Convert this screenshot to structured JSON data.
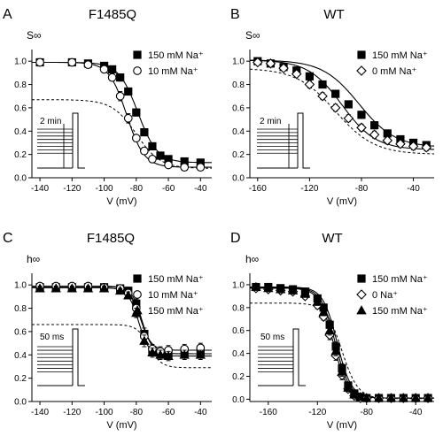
{
  "chart_data": [
    {
      "type": "scatter",
      "panel_letter": "A",
      "title": "F1485Q",
      "ylabel": "S∞",
      "xlabel": "V (mV)",
      "xlim": [
        -145,
        -33
      ],
      "ylim": [
        0.0,
        1.1
      ],
      "xticks": [
        -140,
        -120,
        -100,
        -80,
        -60,
        -40
      ],
      "yticks": [
        0.0,
        0.2,
        0.4,
        0.6,
        0.8,
        1.0
      ],
      "legend_position": "right",
      "inset_label": "2 min",
      "series": [
        {
          "name": "150 mM Na⁺",
          "marker": "filled-square",
          "x": [
            -140,
            -120,
            -110,
            -100,
            -95,
            -90,
            -85,
            -80,
            -75,
            -70,
            -65,
            -60,
            -50,
            -40
          ],
          "y": [
            0.99,
            0.99,
            0.98,
            0.96,
            0.93,
            0.86,
            0.74,
            0.56,
            0.39,
            0.27,
            0.19,
            0.16,
            0.14,
            0.13
          ],
          "err": [
            0.01,
            0.01,
            0.01,
            0.02,
            0.02,
            0.03,
            0.03,
            0.03,
            0.03,
            0.03,
            0.03,
            0.03,
            0.02,
            0.02
          ]
        },
        {
          "name": "10 mM Na⁺",
          "marker": "open-circle",
          "x": [
            -140,
            -120,
            -110,
            -100,
            -95,
            -90,
            -85,
            -80,
            -75,
            -70,
            -60,
            -50,
            -40
          ],
          "y": [
            0.99,
            0.99,
            0.97,
            0.93,
            0.86,
            0.7,
            0.51,
            0.34,
            0.23,
            0.16,
            0.11,
            0.09,
            0.09
          ],
          "err": [
            0.01,
            0.01,
            0.01,
            0.02,
            0.03,
            0.04,
            0.04,
            0.03,
            0.03,
            0.02,
            0.02,
            0.02,
            0.02
          ]
        }
      ],
      "fit_curves": [
        {
          "style": "solid",
          "v_half": -79,
          "k": 6.0,
          "min": 0.13,
          "max": 0.99
        },
        {
          "style": "solid",
          "v_half": -86,
          "k": 5.5,
          "min": 0.09,
          "max": 0.99
        },
        {
          "style": "dashed",
          "v_half": -80,
          "k": 7.5,
          "min": 0.08,
          "max": 0.67
        }
      ]
    },
    {
      "type": "scatter",
      "panel_letter": "B",
      "title": "WT",
      "ylabel": "S∞",
      "xlabel": "V (mV)",
      "xlim": [
        -166,
        -24
      ],
      "ylim": [
        0.0,
        1.1
      ],
      "xticks": [
        -160,
        -120,
        -80,
        -40
      ],
      "yticks": [
        0.0,
        0.2,
        0.4,
        0.6,
        0.8,
        1.0
      ],
      "legend_position": "right",
      "inset_label": "2 min",
      "series": [
        {
          "name": "150 mM Na⁺",
          "marker": "filled-square",
          "x": [
            -160,
            -150,
            -140,
            -130,
            -120,
            -110,
            -100,
            -90,
            -80,
            -70,
            -60,
            -50,
            -40,
            -30
          ],
          "y": [
            1.0,
            0.98,
            0.95,
            0.92,
            0.87,
            0.8,
            0.72,
            0.63,
            0.54,
            0.45,
            0.38,
            0.33,
            0.3,
            0.28
          ],
          "err": [
            0.01,
            0.02,
            0.02,
            0.02,
            0.02,
            0.03,
            0.03,
            0.03,
            0.03,
            0.03,
            0.03,
            0.03,
            0.03,
            0.03
          ]
        },
        {
          "name": "0 mM Na⁺",
          "marker": "open-diamond",
          "x": [
            -160,
            -150,
            -140,
            -130,
            -120,
            -110,
            -100,
            -90,
            -80,
            -70,
            -60,
            -50,
            -40,
            -30
          ],
          "y": [
            0.99,
            0.98,
            0.94,
            0.89,
            0.8,
            0.7,
            0.6,
            0.51,
            0.43,
            0.37,
            0.32,
            0.29,
            0.27,
            0.26
          ],
          "err": [
            0.01,
            0.02,
            0.02,
            0.02,
            0.03,
            0.03,
            0.03,
            0.03,
            0.03,
            0.03,
            0.03,
            0.03,
            0.03,
            0.03
          ]
        }
      ],
      "fit_curves": [
        {
          "style": "solid",
          "v_half": -82,
          "k": 14,
          "min": 0.26,
          "max": 1.01
        },
        {
          "style": "solid",
          "v_half": -95,
          "k": 13,
          "min": 0.24,
          "max": 1.01
        },
        {
          "style": "dashed",
          "v_half": -100,
          "k": 15,
          "min": 0.2,
          "max": 0.94
        }
      ]
    },
    {
      "type": "scatter",
      "panel_letter": "C",
      "title": "F1485Q",
      "ylabel": "h∞",
      "xlabel": "V (mV)",
      "xlim": [
        -145,
        -33
      ],
      "ylim": [
        0.0,
        1.1
      ],
      "xticks": [
        -140,
        -120,
        -100,
        -80,
        -60,
        -40
      ],
      "yticks": [
        0.0,
        0.2,
        0.4,
        0.6,
        0.8,
        1.0
      ],
      "legend_position": "right",
      "inset_label": "50 ms",
      "series": [
        {
          "name": "150 mM Na⁺",
          "marker": "filled-square",
          "x": [
            -140,
            -130,
            -120,
            -110,
            -100,
            -90,
            -85,
            -80,
            -75,
            -70,
            -65,
            -60,
            -50,
            -40
          ],
          "y": [
            0.98,
            0.98,
            0.98,
            0.98,
            0.98,
            0.97,
            0.95,
            0.84,
            0.58,
            0.43,
            0.41,
            0.41,
            0.42,
            0.42
          ],
          "err": [
            0.02,
            0.02,
            0.02,
            0.02,
            0.02,
            0.02,
            0.03,
            0.04,
            0.05,
            0.04,
            0.04,
            0.04,
            0.04,
            0.04
          ]
        },
        {
          "name": "10 mM Na⁺",
          "marker": "open-circle",
          "x": [
            -140,
            -130,
            -120,
            -110,
            -100,
            -90,
            -85,
            -80,
            -75,
            -70,
            -65,
            -60,
            -50,
            -40
          ],
          "y": [
            0.99,
            0.99,
            0.99,
            0.99,
            0.98,
            0.97,
            0.93,
            0.8,
            0.56,
            0.45,
            0.43,
            0.44,
            0.45,
            0.46
          ],
          "err": [
            0.02,
            0.02,
            0.02,
            0.02,
            0.02,
            0.02,
            0.03,
            0.04,
            0.05,
            0.04,
            0.04,
            0.04,
            0.04,
            0.04
          ]
        },
        {
          "name": "150 mM Na⁺",
          "marker": "filled-triangle",
          "x": [
            -140,
            -130,
            -120,
            -110,
            -100,
            -90,
            -85,
            -80,
            -75,
            -70,
            -65,
            -60,
            -50,
            -40
          ],
          "y": [
            0.97,
            0.97,
            0.97,
            0.97,
            0.97,
            0.95,
            0.91,
            0.76,
            0.52,
            0.42,
            0.4,
            0.39,
            0.4,
            0.4
          ],
          "err": [
            0.02,
            0.02,
            0.02,
            0.02,
            0.02,
            0.02,
            0.03,
            0.04,
            0.05,
            0.04,
            0.04,
            0.04,
            0.04,
            0.04
          ]
        }
      ],
      "fit_curves": [
        {
          "style": "solid",
          "v_half": -76.5,
          "k": 3.2,
          "min": 0.41,
          "max": 0.985
        },
        {
          "style": "solid",
          "v_half": -77.5,
          "k": 3.4,
          "min": 0.44,
          "max": 0.99
        },
        {
          "style": "solid",
          "v_half": -78.5,
          "k": 3.3,
          "min": 0.39,
          "max": 0.975
        },
        {
          "style": "dashed",
          "v_half": -72,
          "k": 3.8,
          "min": 0.29,
          "max": 0.66
        }
      ]
    },
    {
      "type": "scatter",
      "panel_letter": "D",
      "title": "WT",
      "ylabel": "h∞",
      "xlabel": "V (mV)",
      "xlim": [
        -175,
        -25
      ],
      "ylim": [
        -0.02,
        1.1
      ],
      "xticks": [
        -160,
        -120,
        -80,
        -40
      ],
      "yticks": [
        0.0,
        0.2,
        0.4,
        0.6,
        0.8,
        1.0
      ],
      "legend_position": "right",
      "inset_label": "50 ms",
      "series": [
        {
          "name": "150 mM Na⁺",
          "marker": "filled-square",
          "x": [
            -170,
            -160,
            -150,
            -140,
            -130,
            -120,
            -115,
            -110,
            -105,
            -100,
            -95,
            -90,
            -85,
            -80,
            -70,
            -60,
            -50,
            -40,
            -30
          ],
          "y": [
            0.98,
            0.98,
            0.97,
            0.96,
            0.94,
            0.88,
            0.8,
            0.65,
            0.46,
            0.27,
            0.12,
            0.05,
            0.02,
            0.01,
            0.01,
            0.01,
            0.01,
            0.01,
            0.01
          ],
          "err": [
            0.02,
            0.02,
            0.02,
            0.02,
            0.02,
            0.03,
            0.03,
            0.04,
            0.04,
            0.04,
            0.03,
            0.02,
            0.01,
            0.01,
            0.01,
            0.01,
            0.01,
            0.01,
            0.01
          ]
        },
        {
          "name": "0 Na⁺",
          "marker": "open-diamond",
          "x": [
            -170,
            -160,
            -150,
            -140,
            -130,
            -120,
            -115,
            -110,
            -105,
            -100,
            -95,
            -90,
            -85,
            -80,
            -70,
            -60,
            -50,
            -40,
            -30
          ],
          "y": [
            0.97,
            0.96,
            0.95,
            0.94,
            0.9,
            0.82,
            0.72,
            0.56,
            0.38,
            0.21,
            0.09,
            0.03,
            0.01,
            0.01,
            0.01,
            0.01,
            0.01,
            0.01,
            0.01
          ],
          "err": [
            0.02,
            0.02,
            0.02,
            0.02,
            0.02,
            0.03,
            0.03,
            0.04,
            0.04,
            0.04,
            0.03,
            0.02,
            0.01,
            0.01,
            0.01,
            0.01,
            0.01,
            0.01,
            0.01
          ]
        },
        {
          "name": "150 mM Na⁺",
          "marker": "filled-triangle",
          "x": [
            -170,
            -160,
            -150,
            -140,
            -130,
            -120,
            -115,
            -110,
            -105,
            -100,
            -95,
            -90,
            -85,
            -80,
            -70,
            -60,
            -50,
            -40,
            -30
          ],
          "y": [
            0.98,
            0.97,
            0.96,
            0.95,
            0.92,
            0.85,
            0.76,
            0.6,
            0.42,
            0.24,
            0.1,
            0.04,
            0.02,
            0.01,
            0.01,
            0.01,
            0.01,
            0.01,
            0.01
          ],
          "err": [
            0.02,
            0.02,
            0.02,
            0.02,
            0.02,
            0.03,
            0.03,
            0.04,
            0.04,
            0.04,
            0.03,
            0.02,
            0.01,
            0.01,
            0.01,
            0.01,
            0.01,
            0.01,
            0.01
          ]
        }
      ],
      "fit_curves": [
        {
          "style": "solid",
          "v_half": -104,
          "k": 5.8,
          "min": 0.01,
          "max": 0.98
        },
        {
          "style": "solid",
          "v_half": -107,
          "k": 5.8,
          "min": 0.01,
          "max": 0.97
        },
        {
          "style": "solid",
          "v_half": -105.5,
          "k": 5.8,
          "min": 0.01,
          "max": 0.975
        },
        {
          "style": "dashed",
          "v_half": -100,
          "k": 6.5,
          "min": 0.005,
          "max": 0.84
        }
      ]
    }
  ]
}
